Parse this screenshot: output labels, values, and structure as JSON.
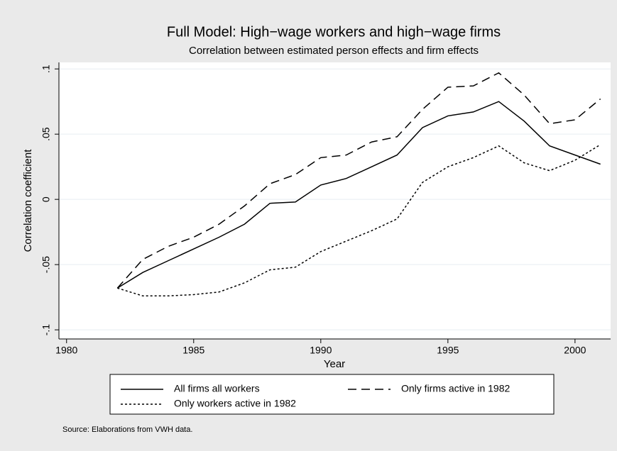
{
  "chart_data": {
    "type": "line",
    "title": "Full Model: High−wage workers and high−wage firms",
    "subtitle": "Correlation between estimated person effects and firm effects",
    "x_label": "Year",
    "y_label": "Correlation coefficient",
    "note": "Source: Elaborations from VWH data.",
    "x": [
      1982,
      1983,
      1984,
      1985,
      1986,
      1987,
      1988,
      1989,
      1990,
      1991,
      1992,
      1993,
      1994,
      1995,
      1996,
      1997,
      1998,
      1999,
      2000,
      2001
    ],
    "series": [
      {
        "name": "All firms all workers",
        "color": "#000000",
        "style": "solid",
        "values": [
          -0.068,
          -0.056,
          -0.047,
          -0.038,
          -0.029,
          -0.019,
          -0.003,
          -0.002,
          0.011,
          0.016,
          0.025,
          0.034,
          0.055,
          0.064,
          0.067,
          0.075,
          0.06,
          0.041,
          0.034,
          0.027
        ]
      },
      {
        "name": "Only firms active in 1982",
        "color": "#000000",
        "style": "dashed",
        "values": [
          -0.068,
          -0.046,
          -0.036,
          -0.029,
          -0.019,
          -0.005,
          0.012,
          0.019,
          0.032,
          0.034,
          0.044,
          0.048,
          0.069,
          0.086,
          0.087,
          0.097,
          0.08,
          0.058,
          0.061,
          0.077
        ]
      },
      {
        "name": "Only workers active in 1982",
        "color": "#000000",
        "style": "dotted",
        "values": [
          -0.068,
          -0.074,
          -0.074,
          -0.073,
          -0.071,
          -0.064,
          -0.054,
          -0.052,
          -0.04,
          -0.032,
          -0.024,
          -0.015,
          0.013,
          0.025,
          0.032,
          0.041,
          0.028,
          0.022,
          0.03,
          0.042
        ]
      }
    ],
    "xlim": [
      1979.7,
      2001.4
    ],
    "xticks": [
      1980,
      1985,
      1990,
      1995,
      2000
    ],
    "ylim": [
      -0.107,
      0.105
    ],
    "yticks": [
      {
        "value": -0.1,
        "label": "-.1"
      },
      {
        "value": -0.05,
        "label": "-.05"
      },
      0,
      {
        "value": 0.05,
        "label": ".05"
      },
      {
        "value": 0.1,
        "label": ".1"
      }
    ],
    "grid": true,
    "legend": "bottom"
  }
}
